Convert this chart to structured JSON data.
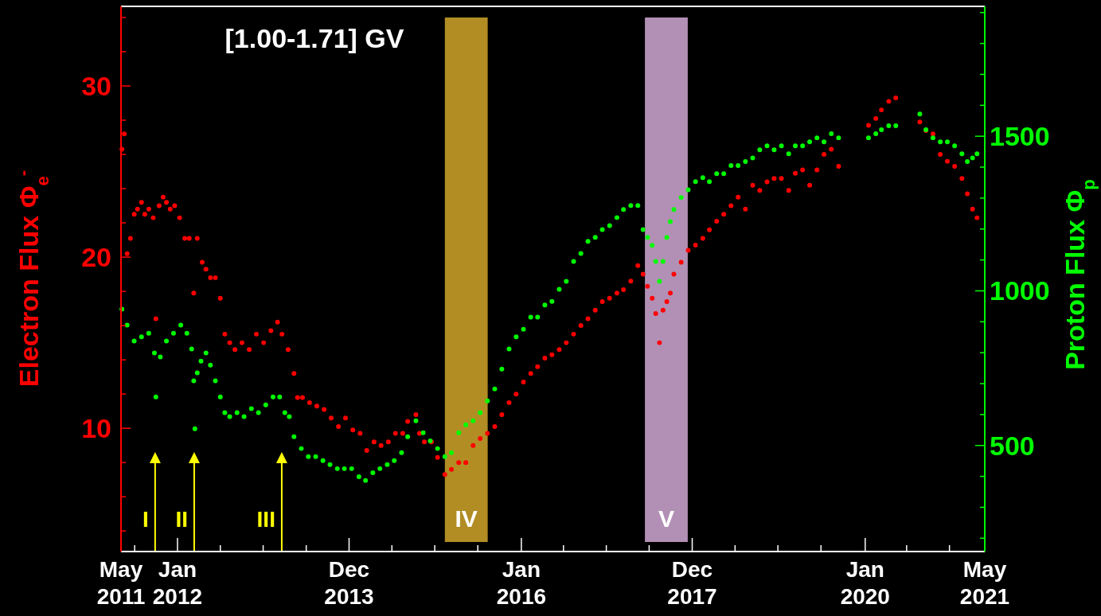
{
  "chart_data": {
    "type": "scatter",
    "title": "[1.00-1.71] GV",
    "ylabel": "Electron Flux Φ$_{e}$$^{-}$",
    "y2label": "Proton Flux Φ$_{p}$",
    "marker": "circle",
    "grid": false,
    "xlim": [
      "2011-05-06",
      "2021-05-23"
    ],
    "xticks": [
      {
        "value": "2011-05-06",
        "label": "May 2011"
      },
      {
        "value": "2011-07-03",
        "label": null
      },
      {
        "value": "2012-01-01",
        "label": "Jan 2012"
      },
      {
        "value": "2012-07-01",
        "label": null
      },
      {
        "value": "2012-12-30",
        "label": null
      },
      {
        "value": "2013-07-01",
        "label": null
      },
      {
        "value": "2013-12-30",
        "label": "Dec 2013"
      },
      {
        "value": "2014-06-30",
        "label": null
      },
      {
        "value": "2014-12-29",
        "label": null
      },
      {
        "value": "2015-06-30",
        "label": null
      },
      {
        "value": "2016-01-01",
        "label": "Jan 2016"
      },
      {
        "value": "2016-06-28",
        "label": null
      },
      {
        "value": "2016-12-27",
        "label": null
      },
      {
        "value": "2017-06-27",
        "label": null
      },
      {
        "value": "2017-12-27",
        "label": "Dec 2017"
      },
      {
        "value": "2018-06-27",
        "label": null
      },
      {
        "value": "2018-12-26",
        "label": null
      },
      {
        "value": "2019-06-27",
        "label": null
      },
      {
        "value": "2020-01-01",
        "label": "Jan 2020"
      },
      {
        "value": "2020-06-25",
        "label": null
      },
      {
        "value": "2020-12-24",
        "label": null
      },
      {
        "value": "2021-05-23",
        "label": "May 2021"
      }
    ],
    "ylim": [
      2.8,
      34.65
    ],
    "yticks": [
      {
        "value": 4,
        "label": null
      },
      {
        "value": 6,
        "label": null
      },
      {
        "value": 8,
        "label": null
      },
      10,
      {
        "value": 12,
        "label": null
      },
      {
        "value": 14,
        "label": null
      },
      {
        "value": 16,
        "label": null
      },
      {
        "value": 18,
        "label": null
      },
      20,
      {
        "value": 22,
        "label": null
      },
      {
        "value": 24,
        "label": null
      },
      {
        "value": 26,
        "label": null
      },
      {
        "value": 28,
        "label": null
      },
      30,
      {
        "value": 32,
        "label": null
      },
      {
        "value": 34,
        "label": null
      }
    ],
    "y2lim": [
      157,
      1920
    ],
    "y2ticks": [
      {
        "value": 200,
        "label": null
      },
      {
        "value": 300,
        "label": null
      },
      {
        "value": 400,
        "label": null
      },
      500,
      {
        "value": 600,
        "label": null
      },
      {
        "value": 700,
        "label": null
      },
      {
        "value": 800,
        "label": null
      },
      {
        "value": 900,
        "label": null
      },
      1000,
      {
        "value": 1100,
        "label": null
      },
      {
        "value": 1200,
        "label": null
      },
      {
        "value": 1300,
        "label": null
      },
      {
        "value": 1400,
        "label": null
      },
      1500,
      {
        "value": 1600,
        "label": null
      },
      {
        "value": 1700,
        "label": null
      },
      {
        "value": 1800,
        "label": null
      },
      {
        "value": 1900,
        "label": null
      }
    ],
    "bands": [
      {
        "axis": "x",
        "from": "2015-02-10",
        "to": "2015-08-11",
        "label": "IV",
        "color": "#b28d24"
      },
      {
        "axis": "x",
        "from": "2017-06-09",
        "to": "2017-12-08",
        "label": "V",
        "color": "#b290b5"
      }
    ],
    "ref_lines": [
      {
        "axis": "x",
        "value": "2011-09-28",
        "label": "I",
        "color": "#ffff00"
      },
      {
        "axis": "x",
        "value": "2012-03-12",
        "label": "II",
        "color": "#ffff00"
      },
      {
        "axis": "x",
        "value": "2013-03-19",
        "label": "III",
        "color": "#ffff00"
      }
    ],
    "series": [
      {
        "color": "#ff0000",
        "axis": "y",
        "x": [
          "2011-05-10",
          "2011-05-20",
          "2011-06-01",
          "2011-06-15",
          "2011-07-01",
          "2011-07-15",
          "2011-08-01",
          "2011-08-15",
          "2011-09-01",
          "2011-09-20",
          "2011-10-01",
          "2011-10-15",
          "2011-11-01",
          "2011-11-15",
          "2011-12-01",
          "2011-12-20",
          "2012-01-10",
          "2012-02-01",
          "2012-02-20",
          "2012-03-10",
          "2012-03-25",
          "2012-04-15",
          "2012-05-01",
          "2012-05-20",
          "2012-06-10",
          "2012-07-01",
          "2012-07-20",
          "2012-08-10",
          "2012-09-01",
          "2012-10-01",
          "2012-11-01",
          "2012-12-01",
          "2013-01-01",
          "2013-02-01",
          "2013-03-01",
          "2013-03-20",
          "2013-04-15",
          "2013-05-10",
          "2013-05-25",
          "2013-06-15",
          "2013-07-15",
          "2013-08-15",
          "2013-09-15",
          "2013-10-15",
          "2013-11-15",
          "2013-12-15",
          "2014-01-15",
          "2014-02-15",
          "2014-03-15",
          "2014-04-15",
          "2014-05-15",
          "2014-06-15",
          "2014-07-15",
          "2014-08-15",
          "2014-09-05",
          "2014-10-10",
          "2014-10-25",
          "2014-11-15",
          "2014-12-15",
          "2015-01-10",
          "2015-02-10",
          "2015-03-10",
          "2015-04-10",
          "2015-05-10",
          "2015-06-10",
          "2015-07-10",
          "2015-08-10",
          "2015-09-10",
          "2015-10-10",
          "2015-11-10",
          "2015-12-10",
          "2016-01-10",
          "2016-02-10",
          "2016-03-10",
          "2016-04-10",
          "2016-05-10",
          "2016-06-10",
          "2016-07-10",
          "2016-08-10",
          "2016-09-10",
          "2016-10-10",
          "2016-11-10",
          "2016-12-10",
          "2017-01-10",
          "2017-02-10",
          "2017-03-10",
          "2017-04-10",
          "2017-05-10",
          "2017-06-01",
          "2017-06-20",
          "2017-07-10",
          "2017-07-25",
          "2017-08-10",
          "2017-08-25",
          "2017-09-10",
          "2017-09-25",
          "2017-10-10",
          "2017-11-10",
          "2017-12-10",
          "2018-01-10",
          "2018-02-10",
          "2018-03-10",
          "2018-04-10",
          "2018-05-10",
          "2018-06-10",
          "2018-07-10",
          "2018-08-10",
          "2018-09-10",
          "2018-10-10",
          "2018-11-10",
          "2018-12-10",
          "2019-01-10",
          "2019-02-10",
          "2019-03-10",
          "2019-04-10",
          "2019-05-10",
          "2019-06-10",
          "2019-07-10",
          "2019-08-10",
          "2019-09-10",
          "2020-01-15",
          "2020-02-15",
          "2020-03-10",
          "2020-04-10",
          "2020-05-10",
          "2020-08-20",
          "2020-09-15",
          "2020-10-15",
          "2020-11-15",
          "2020-12-15",
          "2021-01-15",
          "2021-02-15",
          "2021-03-10",
          "2021-04-01",
          "2021-04-20"
        ],
        "values": [
          26.3,
          27.2,
          20.2,
          21.1,
          22.5,
          22.8,
          23.2,
          22.5,
          22.8,
          22.3,
          16.4,
          23.0,
          23.5,
          23.2,
          22.8,
          23.0,
          22.3,
          21.1,
          21.1,
          17.9,
          21.1,
          19.7,
          19.3,
          18.8,
          18.8,
          17.6,
          15.5,
          15.0,
          14.6,
          15.0,
          14.6,
          15.5,
          15.0,
          15.7,
          16.2,
          15.5,
          14.6,
          13.2,
          11.8,
          11.8,
          11.5,
          11.3,
          11.1,
          10.6,
          10.1,
          10.6,
          9.9,
          9.7,
          8.7,
          9.2,
          9.0,
          9.2,
          9.7,
          9.7,
          10.4,
          10.8,
          9.7,
          9.2,
          9.2,
          8.3,
          7.3,
          7.6,
          8.0,
          8.0,
          9.0,
          9.4,
          9.7,
          10.1,
          10.8,
          11.5,
          12.0,
          12.7,
          13.2,
          13.6,
          14.1,
          14.3,
          14.6,
          15.0,
          15.5,
          16.0,
          16.4,
          16.9,
          17.4,
          17.6,
          17.9,
          18.1,
          18.6,
          19.5,
          19.0,
          18.3,
          17.6,
          16.7,
          15.0,
          16.9,
          17.4,
          17.9,
          19.0,
          19.7,
          20.4,
          20.7,
          21.1,
          21.6,
          22.1,
          22.5,
          23.0,
          23.5,
          22.8,
          24.2,
          23.9,
          24.4,
          24.6,
          24.6,
          23.9,
          24.9,
          25.1,
          24.2,
          25.1,
          26.0,
          26.3,
          25.3,
          27.7,
          28.1,
          28.6,
          29.1,
          29.3,
          27.9,
          27.4,
          27.2,
          26.0,
          25.6,
          25.3,
          24.6,
          23.7,
          22.8,
          22.3
        ]
      },
      {
        "color": "#00ff00",
        "axis": "y2",
        "x": [
          "2011-05-10",
          "2011-06-01",
          "2011-07-01",
          "2011-08-01",
          "2011-09-01",
          "2011-09-25",
          "2011-10-01",
          "2011-10-20",
          "2011-11-15",
          "2011-12-15",
          "2012-01-15",
          "2012-02-10",
          "2012-03-01",
          "2012-03-10",
          "2012-03-15",
          "2012-03-25",
          "2012-04-10",
          "2012-05-01",
          "2012-05-20",
          "2012-06-10",
          "2012-07-01",
          "2012-07-20",
          "2012-08-10",
          "2012-09-10",
          "2012-10-10",
          "2012-11-10",
          "2012-12-10",
          "2013-01-10",
          "2013-02-10",
          "2013-03-10",
          "2013-04-01",
          "2013-04-20",
          "2013-05-10",
          "2013-06-10",
          "2013-07-10",
          "2013-08-10",
          "2013-09-10",
          "2013-10-10",
          "2013-11-10",
          "2013-12-10",
          "2014-01-10",
          "2014-02-10",
          "2014-03-10",
          "2014-04-10",
          "2014-05-10",
          "2014-06-10",
          "2014-07-10",
          "2014-08-10",
          "2014-09-05",
          "2014-10-10",
          "2014-11-10",
          "2014-12-10",
          "2015-01-10",
          "2015-02-10",
          "2015-03-10",
          "2015-04-10",
          "2015-05-10",
          "2015-06-10",
          "2015-07-10",
          "2015-08-10",
          "2015-09-10",
          "2015-10-10",
          "2015-11-10",
          "2015-12-10",
          "2016-01-10",
          "2016-02-10",
          "2016-03-10",
          "2016-04-10",
          "2016-05-10",
          "2016-06-10",
          "2016-07-10",
          "2016-08-10",
          "2016-09-10",
          "2016-10-10",
          "2016-11-10",
          "2016-12-10",
          "2017-01-10",
          "2017-02-10",
          "2017-03-10",
          "2017-04-10",
          "2017-05-10",
          "2017-06-01",
          "2017-06-20",
          "2017-07-10",
          "2017-07-25",
          "2017-08-10",
          "2017-08-25",
          "2017-09-10",
          "2017-09-25",
          "2017-10-10",
          "2017-11-10",
          "2017-12-10",
          "2018-01-10",
          "2018-02-10",
          "2018-03-10",
          "2018-04-10",
          "2018-05-10",
          "2018-06-10",
          "2018-07-10",
          "2018-08-10",
          "2018-09-10",
          "2018-10-10",
          "2018-11-10",
          "2018-12-10",
          "2019-01-10",
          "2019-02-10",
          "2019-03-10",
          "2019-04-10",
          "2019-05-10",
          "2019-06-10",
          "2019-07-10",
          "2019-08-10",
          "2019-09-10",
          "2020-01-15",
          "2020-02-15",
          "2020-03-10",
          "2020-04-10",
          "2020-05-10",
          "2020-08-20",
          "2020-09-15",
          "2020-10-15",
          "2020-11-15",
          "2020-12-15",
          "2021-01-15",
          "2021-02-15",
          "2021-03-10",
          "2021-04-01",
          "2021-04-20"
        ],
        "values": [
          941,
          889,
          838,
          851,
          863,
          799,
          657,
          786,
          838,
          863,
          889,
          863,
          812,
          709,
          554,
          735,
          773,
          799,
          760,
          709,
          657,
          606,
          593,
          606,
          593,
          619,
          606,
          631,
          657,
          657,
          606,
          593,
          528,
          490,
          464,
          464,
          451,
          438,
          425,
          425,
          425,
          399,
          387,
          412,
          425,
          438,
          451,
          477,
          528,
          580,
          541,
          515,
          490,
          464,
          477,
          541,
          567,
          580,
          606,
          644,
          683,
          747,
          812,
          851,
          876,
          915,
          915,
          954,
          966,
          1005,
          1031,
          1095,
          1121,
          1160,
          1173,
          1198,
          1211,
          1237,
          1263,
          1276,
          1276,
          1198,
          1173,
          1147,
          1095,
          1031,
          1095,
          1173,
          1224,
          1263,
          1302,
          1327,
          1353,
          1366,
          1353,
          1379,
          1379,
          1405,
          1405,
          1418,
          1430,
          1456,
          1469,
          1456,
          1469,
          1443,
          1469,
          1469,
          1482,
          1495,
          1482,
          1508,
          1495,
          1495,
          1508,
          1521,
          1534,
          1534,
          1572,
          1521,
          1495,
          1482,
          1482,
          1469,
          1443,
          1418,
          1430,
          1443
        ]
      }
    ]
  }
}
